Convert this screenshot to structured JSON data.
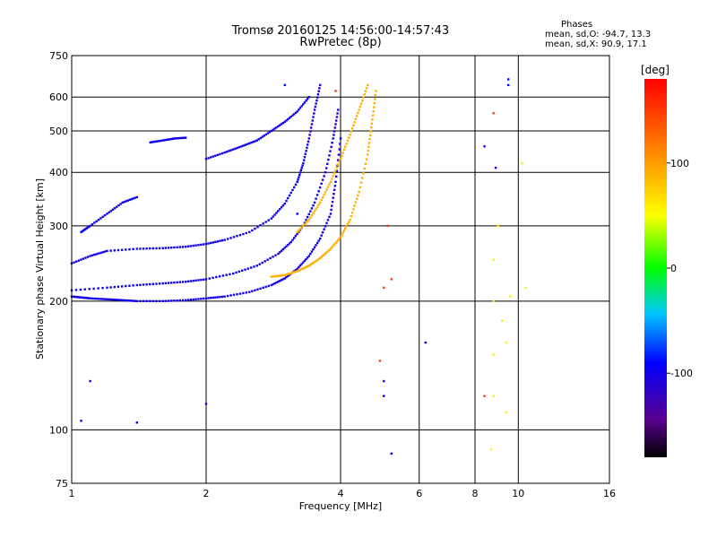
{
  "header": {
    "title_line1": "Tromsø 20160125 14:56:00-14:57:43",
    "title_line2": "RwPretec (8p)"
  },
  "stats": {
    "heading": "Phases",
    "o_line": "mean, sd,O: -94.7, 13.3",
    "x_line": "mean, sd,X:  90.9, 17.1"
  },
  "chart_data": {
    "type": "scatter",
    "xlabel": "Frequency [MHz]",
    "ylabel": "Stationary phase Virtual Height [km]",
    "x_scale": "log",
    "y_scale": "log",
    "xlim": [
      1,
      16
    ],
    "ylim": [
      75,
      750
    ],
    "xticks": [
      1,
      2,
      4,
      6,
      8,
      10,
      16
    ],
    "yticks": [
      75,
      100,
      200,
      300,
      400,
      500,
      600,
      750
    ],
    "grid": true,
    "colorbar": {
      "label": "[deg]",
      "range": [
        -180,
        180
      ],
      "ticks": [
        100,
        0,
        -100
      ],
      "colormap": "rainbow"
    },
    "traces": [
      {
        "mode": "O",
        "phase": -100,
        "points": [
          [
            1.0,
            205
          ],
          [
            1.05,
            204
          ],
          [
            1.1,
            203
          ],
          [
            1.2,
            202
          ],
          [
            1.3,
            201
          ],
          [
            1.4,
            200
          ],
          [
            1.6,
            200
          ],
          [
            1.8,
            201
          ],
          [
            2.0,
            203
          ],
          [
            2.2,
            205
          ],
          [
            2.5,
            210
          ],
          [
            2.8,
            218
          ],
          [
            3.0,
            226
          ],
          [
            3.2,
            238
          ],
          [
            3.4,
            255
          ],
          [
            3.6,
            280
          ],
          [
            3.8,
            320
          ],
          [
            3.9,
            380
          ],
          [
            4.0,
            480
          ]
        ]
      },
      {
        "mode": "O",
        "phase": -100,
        "points": [
          [
            1.0,
            212
          ],
          [
            1.2,
            215
          ],
          [
            1.4,
            218
          ],
          [
            1.6,
            220
          ],
          [
            1.8,
            222
          ],
          [
            2.0,
            225
          ],
          [
            2.3,
            232
          ],
          [
            2.6,
            242
          ],
          [
            2.9,
            258
          ],
          [
            3.1,
            275
          ],
          [
            3.3,
            300
          ],
          [
            3.5,
            340
          ],
          [
            3.7,
            400
          ],
          [
            3.85,
            480
          ],
          [
            3.95,
            560
          ]
        ]
      },
      {
        "mode": "O",
        "phase": -100,
        "points": [
          [
            1.0,
            245
          ],
          [
            1.1,
            255
          ],
          [
            1.2,
            262
          ],
          [
            1.4,
            265
          ],
          [
            1.6,
            266
          ],
          [
            1.8,
            268
          ],
          [
            2.0,
            272
          ],
          [
            2.2,
            278
          ],
          [
            2.5,
            290
          ],
          [
            2.8,
            312
          ],
          [
            3.0,
            338
          ],
          [
            3.2,
            380
          ],
          [
            3.3,
            420
          ],
          [
            3.4,
            480
          ],
          [
            3.5,
            560
          ],
          [
            3.6,
            640
          ]
        ]
      },
      {
        "mode": "O",
        "phase": -100,
        "points": [
          [
            1.05,
            290
          ],
          [
            1.1,
            300
          ],
          [
            1.2,
            320
          ],
          [
            1.3,
            340
          ],
          [
            1.4,
            350
          ]
        ]
      },
      {
        "mode": "O",
        "phase": -100,
        "points": [
          [
            1.5,
            470
          ],
          [
            1.6,
            475
          ],
          [
            1.7,
            480
          ],
          [
            1.8,
            482
          ]
        ]
      },
      {
        "mode": "O",
        "phase": -100,
        "points": [
          [
            2.0,
            430
          ],
          [
            2.2,
            445
          ],
          [
            2.4,
            460
          ],
          [
            2.6,
            475
          ],
          [
            2.8,
            500
          ],
          [
            3.0,
            525
          ],
          [
            3.2,
            555
          ],
          [
            3.4,
            600
          ]
        ]
      },
      {
        "mode": "X",
        "phase": 90,
        "points": [
          [
            2.8,
            228
          ],
          [
            3.0,
            230
          ],
          [
            3.2,
            235
          ],
          [
            3.4,
            242
          ],
          [
            3.6,
            252
          ],
          [
            3.8,
            265
          ],
          [
            4.0,
            282
          ],
          [
            4.2,
            310
          ],
          [
            4.4,
            360
          ],
          [
            4.6,
            440
          ],
          [
            4.7,
            520
          ],
          [
            4.8,
            620
          ]
        ]
      },
      {
        "mode": "X",
        "phase": 90,
        "points": [
          [
            3.2,
            290
          ],
          [
            3.4,
            310
          ],
          [
            3.6,
            340
          ],
          [
            3.8,
            380
          ],
          [
            4.0,
            430
          ],
          [
            4.2,
            490
          ],
          [
            4.4,
            560
          ],
          [
            4.6,
            640
          ]
        ]
      },
      {
        "mode": "noise",
        "phase": 60,
        "points": [
          [
            8.7,
            90
          ],
          [
            8.8,
            120
          ],
          [
            8.8,
            150
          ],
          [
            8.8,
            200
          ],
          [
            8.8,
            250
          ],
          [
            9.0,
            300
          ],
          [
            9.2,
            180
          ],
          [
            9.4,
            160
          ],
          [
            9.4,
            110
          ],
          [
            9.6,
            205
          ],
          [
            10.2,
            420
          ],
          [
            10.4,
            215
          ]
        ]
      },
      {
        "mode": "noise",
        "phase": -90,
        "points": [
          [
            1.05,
            105
          ],
          [
            1.1,
            130
          ],
          [
            1.4,
            104
          ],
          [
            2.0,
            115
          ],
          [
            3.0,
            640
          ],
          [
            3.2,
            320
          ],
          [
            5.0,
            120
          ],
          [
            5.0,
            130
          ],
          [
            6.2,
            160
          ],
          [
            8.4,
            460
          ],
          [
            9.5,
            660
          ],
          [
            9.5,
            640
          ],
          [
            8.9,
            410
          ],
          [
            5.2,
            88
          ]
        ]
      },
      {
        "mode": "noise",
        "phase": 150,
        "points": [
          [
            8.8,
            550
          ],
          [
            5.1,
            300
          ],
          [
            5.2,
            225
          ],
          [
            4.9,
            145
          ],
          [
            8.4,
            120
          ],
          [
            5.0,
            215
          ],
          [
            3.9,
            620
          ]
        ]
      }
    ]
  }
}
